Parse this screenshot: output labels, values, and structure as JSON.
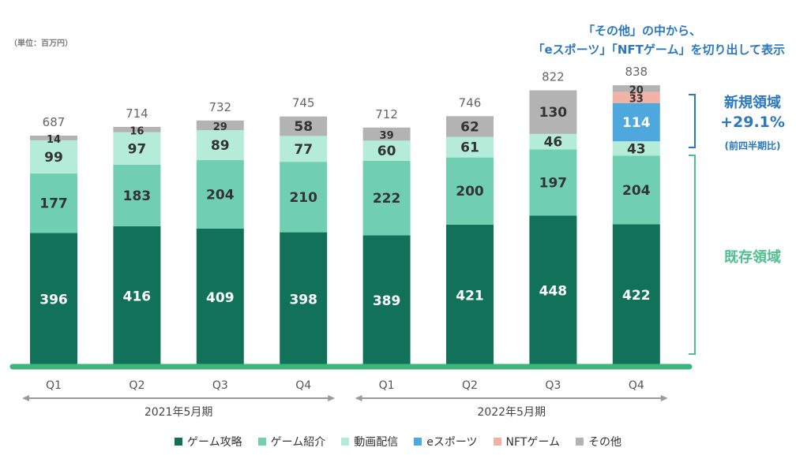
{
  "unit_label": "（単位：百万円）",
  "callout": {
    "line1": "「その他」の中から、",
    "line2": "「eスポーツ」「NFTゲーム」を切り出して表示"
  },
  "side_labels": {
    "new_title": "新規領域",
    "new_growth": "+29.1%",
    "new_note": "(前四半期比)",
    "existing": "既存領域"
  },
  "colors": {
    "game_guide": "#117259",
    "game_intro": "#6fcfb0",
    "video": "#b5ecd9",
    "esports": "#4ea8dd",
    "nft": "#f2b2a6",
    "other": "#b3b3b3",
    "baseline": "#3db57a",
    "bracket": "#2a78c2",
    "bracket_green": "#4fbf8f"
  },
  "chart_data": {
    "type": "bar",
    "stacked": true,
    "categories": [
      "Q1",
      "Q2",
      "Q3",
      "Q4",
      "Q1",
      "Q2",
      "Q3",
      "Q4"
    ],
    "periods": [
      {
        "label": "2021年5月期",
        "start": 0,
        "end": 3
      },
      {
        "label": "2022年5月期",
        "start": 4,
        "end": 7
      }
    ],
    "series": [
      {
        "name": "ゲーム攻略",
        "color_key": "game_guide",
        "values": [
          396,
          416,
          409,
          398,
          389,
          421,
          448,
          422
        ]
      },
      {
        "name": "ゲーム紹介",
        "color_key": "game_intro",
        "values": [
          177,
          183,
          204,
          210,
          222,
          200,
          197,
          204
        ]
      },
      {
        "name": "動画配信",
        "color_key": "video",
        "values": [
          99,
          97,
          89,
          77,
          60,
          61,
          46,
          43
        ]
      },
      {
        "name": "eスポーツ",
        "color_key": "esports",
        "values": [
          null,
          null,
          null,
          null,
          null,
          null,
          null,
          114
        ]
      },
      {
        "name": "NFTゲーム",
        "color_key": "nft",
        "values": [
          null,
          null,
          null,
          null,
          null,
          null,
          null,
          33
        ]
      },
      {
        "name": "その他",
        "color_key": "other",
        "values": [
          14,
          16,
          29,
          58,
          39,
          62,
          130,
          20
        ]
      }
    ],
    "totals": [
      687,
      714,
      732,
      745,
      712,
      746,
      822,
      838
    ],
    "legend_position": "bottom"
  }
}
